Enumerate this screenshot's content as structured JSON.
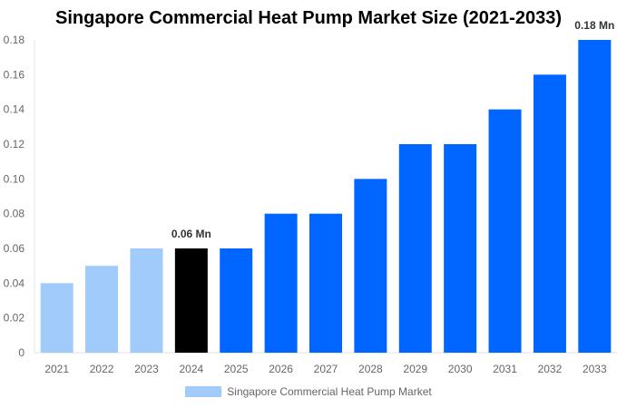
{
  "chart_data": {
    "type": "bar",
    "title": "Singapore Commercial Heat Pump Market Size (2021-2033)",
    "categories": [
      "2021",
      "2022",
      "2023",
      "2024",
      "2025",
      "2026",
      "2027",
      "2028",
      "2029",
      "2030",
      "2031",
      "2032",
      "2033"
    ],
    "series": [
      {
        "name": "Singapore Commercial Heat Pump Market",
        "values": [
          0.04,
          0.05,
          0.06,
          0.06,
          0.06,
          0.08,
          0.08,
          0.1,
          0.12,
          0.12,
          0.14,
          0.16,
          0.18
        ]
      }
    ],
    "bar_colors": [
      "#a0cbfb",
      "#a0cbfb",
      "#a0cbfb",
      "#000000",
      "#0066ff",
      "#0066ff",
      "#0066ff",
      "#0066ff",
      "#0066ff",
      "#0066ff",
      "#0066ff",
      "#0066ff",
      "#0066ff"
    ],
    "data_labels": {
      "3": "0.06 Mn",
      "12": "0.18 Mn"
    },
    "yticks": [
      "0",
      "0.02",
      "0.04",
      "0.06",
      "0.08",
      "0.10",
      "0.12",
      "0.14",
      "0.16",
      "0.18"
    ],
    "ylim": [
      0,
      0.18
    ],
    "xlabel": "",
    "ylabel": "",
    "grid": false,
    "legend_position": "bottom",
    "legend_color": "#a0cbfb"
  }
}
